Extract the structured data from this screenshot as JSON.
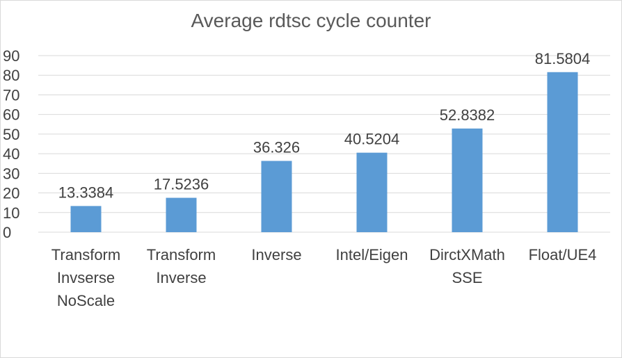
{
  "chart_data": {
    "type": "bar",
    "title": "Average rdtsc cycle counter",
    "xlabel": "",
    "ylabel": "",
    "categories": [
      [
        "Transform",
        "Invserse",
        "NoScale"
      ],
      [
        "Transform",
        "Inverse"
      ],
      [
        "Inverse"
      ],
      [
        "Intel/Eigen"
      ],
      [
        "DirctXMath",
        "SSE"
      ],
      [
        "Float/UE4"
      ]
    ],
    "values": [
      13.3384,
      17.5236,
      36.326,
      40.5204,
      52.8382,
      81.5804
    ],
    "data_labels": [
      "13.3384",
      "17.5236",
      "36.326",
      "40.5204",
      "52.8382",
      "81.5804"
    ],
    "ylim": [
      0,
      90
    ],
    "yticks": [
      0,
      10,
      20,
      30,
      40,
      50,
      60,
      70,
      80,
      90
    ],
    "grid": true,
    "legend": "none",
    "colors": {
      "bar": "#5b9bd5",
      "grid": "#d9d9d9",
      "text": "#404040",
      "title": "#595959"
    }
  }
}
